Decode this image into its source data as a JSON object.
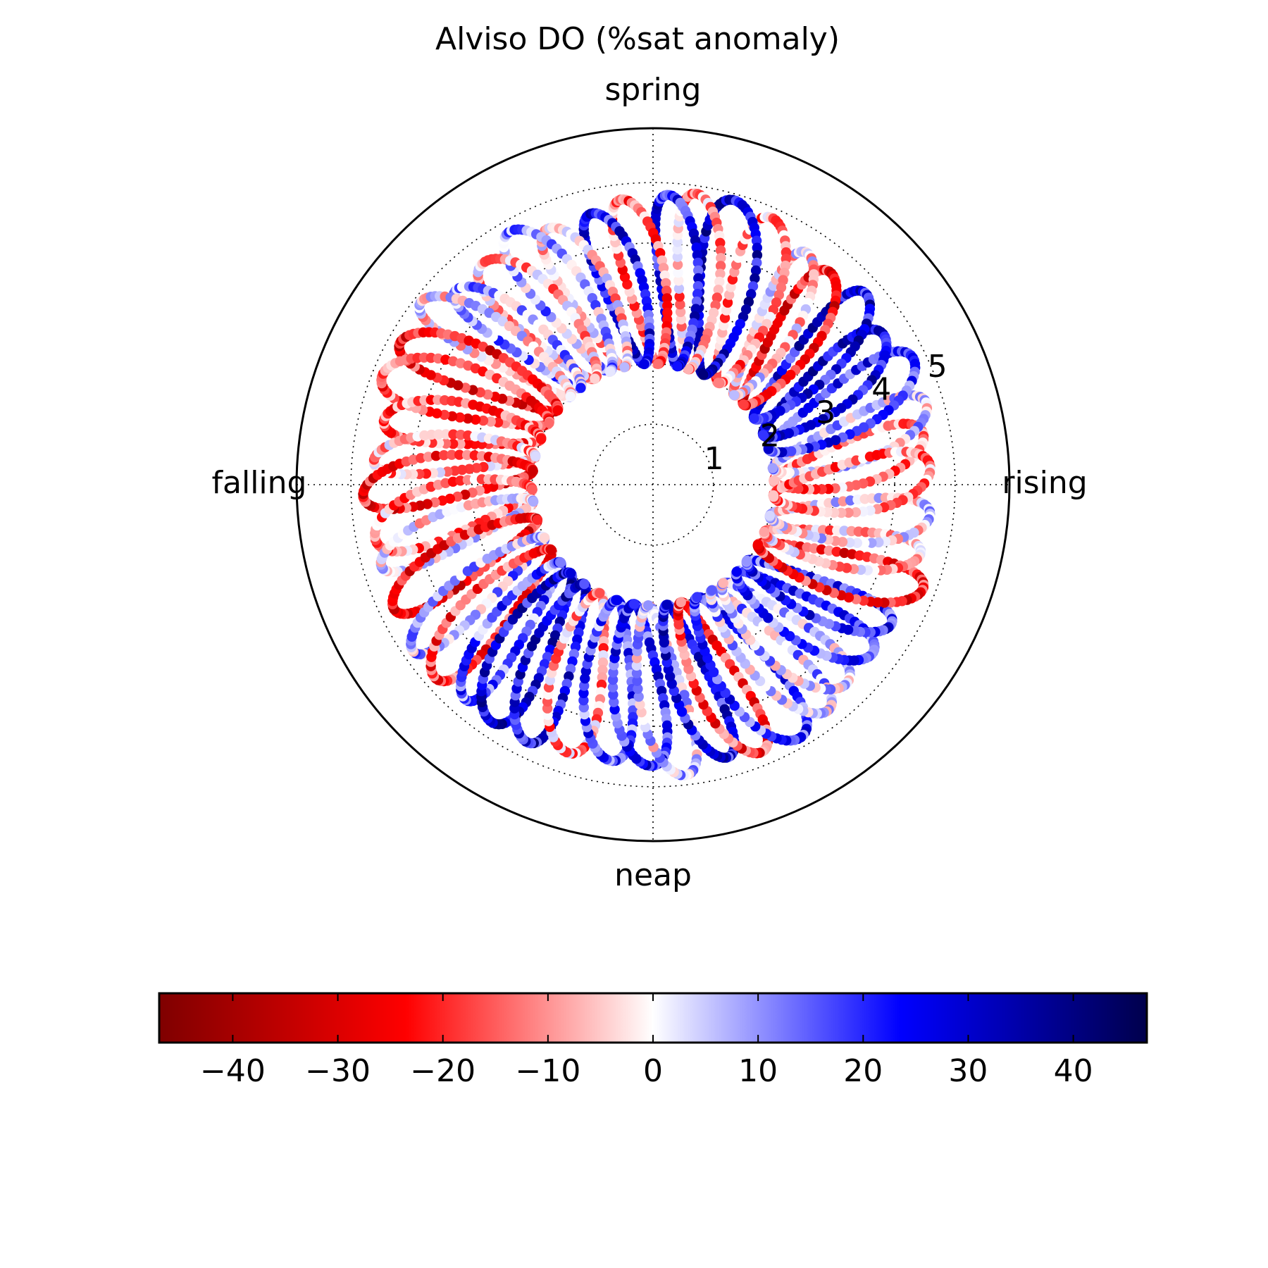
{
  "chart_data": {
    "type": "scatter",
    "projection": "polar",
    "title": "Alviso DO (%sat anomaly)",
    "angular_labels": {
      "top": "spring",
      "right": "rising",
      "bottom": "neap",
      "left": "falling"
    },
    "radial_ticks": [
      "1",
      "2",
      "3",
      "4",
      "5"
    ],
    "rlim": [
      0,
      5.9
    ],
    "grid": true,
    "point_cloud": {
      "description_values": "annulus of scattered points between r≈2 and r≈5, colored by DO %sat anomaly",
      "r_inner": 2.0,
      "r_outer": 4.9,
      "n_loops": 46,
      "value_range": [
        -40,
        40
      ]
    },
    "colorbar": {
      "colormap": "seismic_r",
      "vmin": -47,
      "vmax": 47,
      "orientation": "horizontal",
      "ticks": [
        "−40",
        "−30",
        "−20",
        "−10",
        "0",
        "10",
        "20",
        "30",
        "40"
      ],
      "tick_values": [
        -40,
        -30,
        -20,
        -10,
        0,
        10,
        20,
        30,
        40
      ],
      "colors": {
        "min": "#7f0000",
        "mid_low": "#ff0000",
        "zero": "#ffffff",
        "mid_high": "#0000ff",
        "max": "#00004c"
      }
    }
  }
}
